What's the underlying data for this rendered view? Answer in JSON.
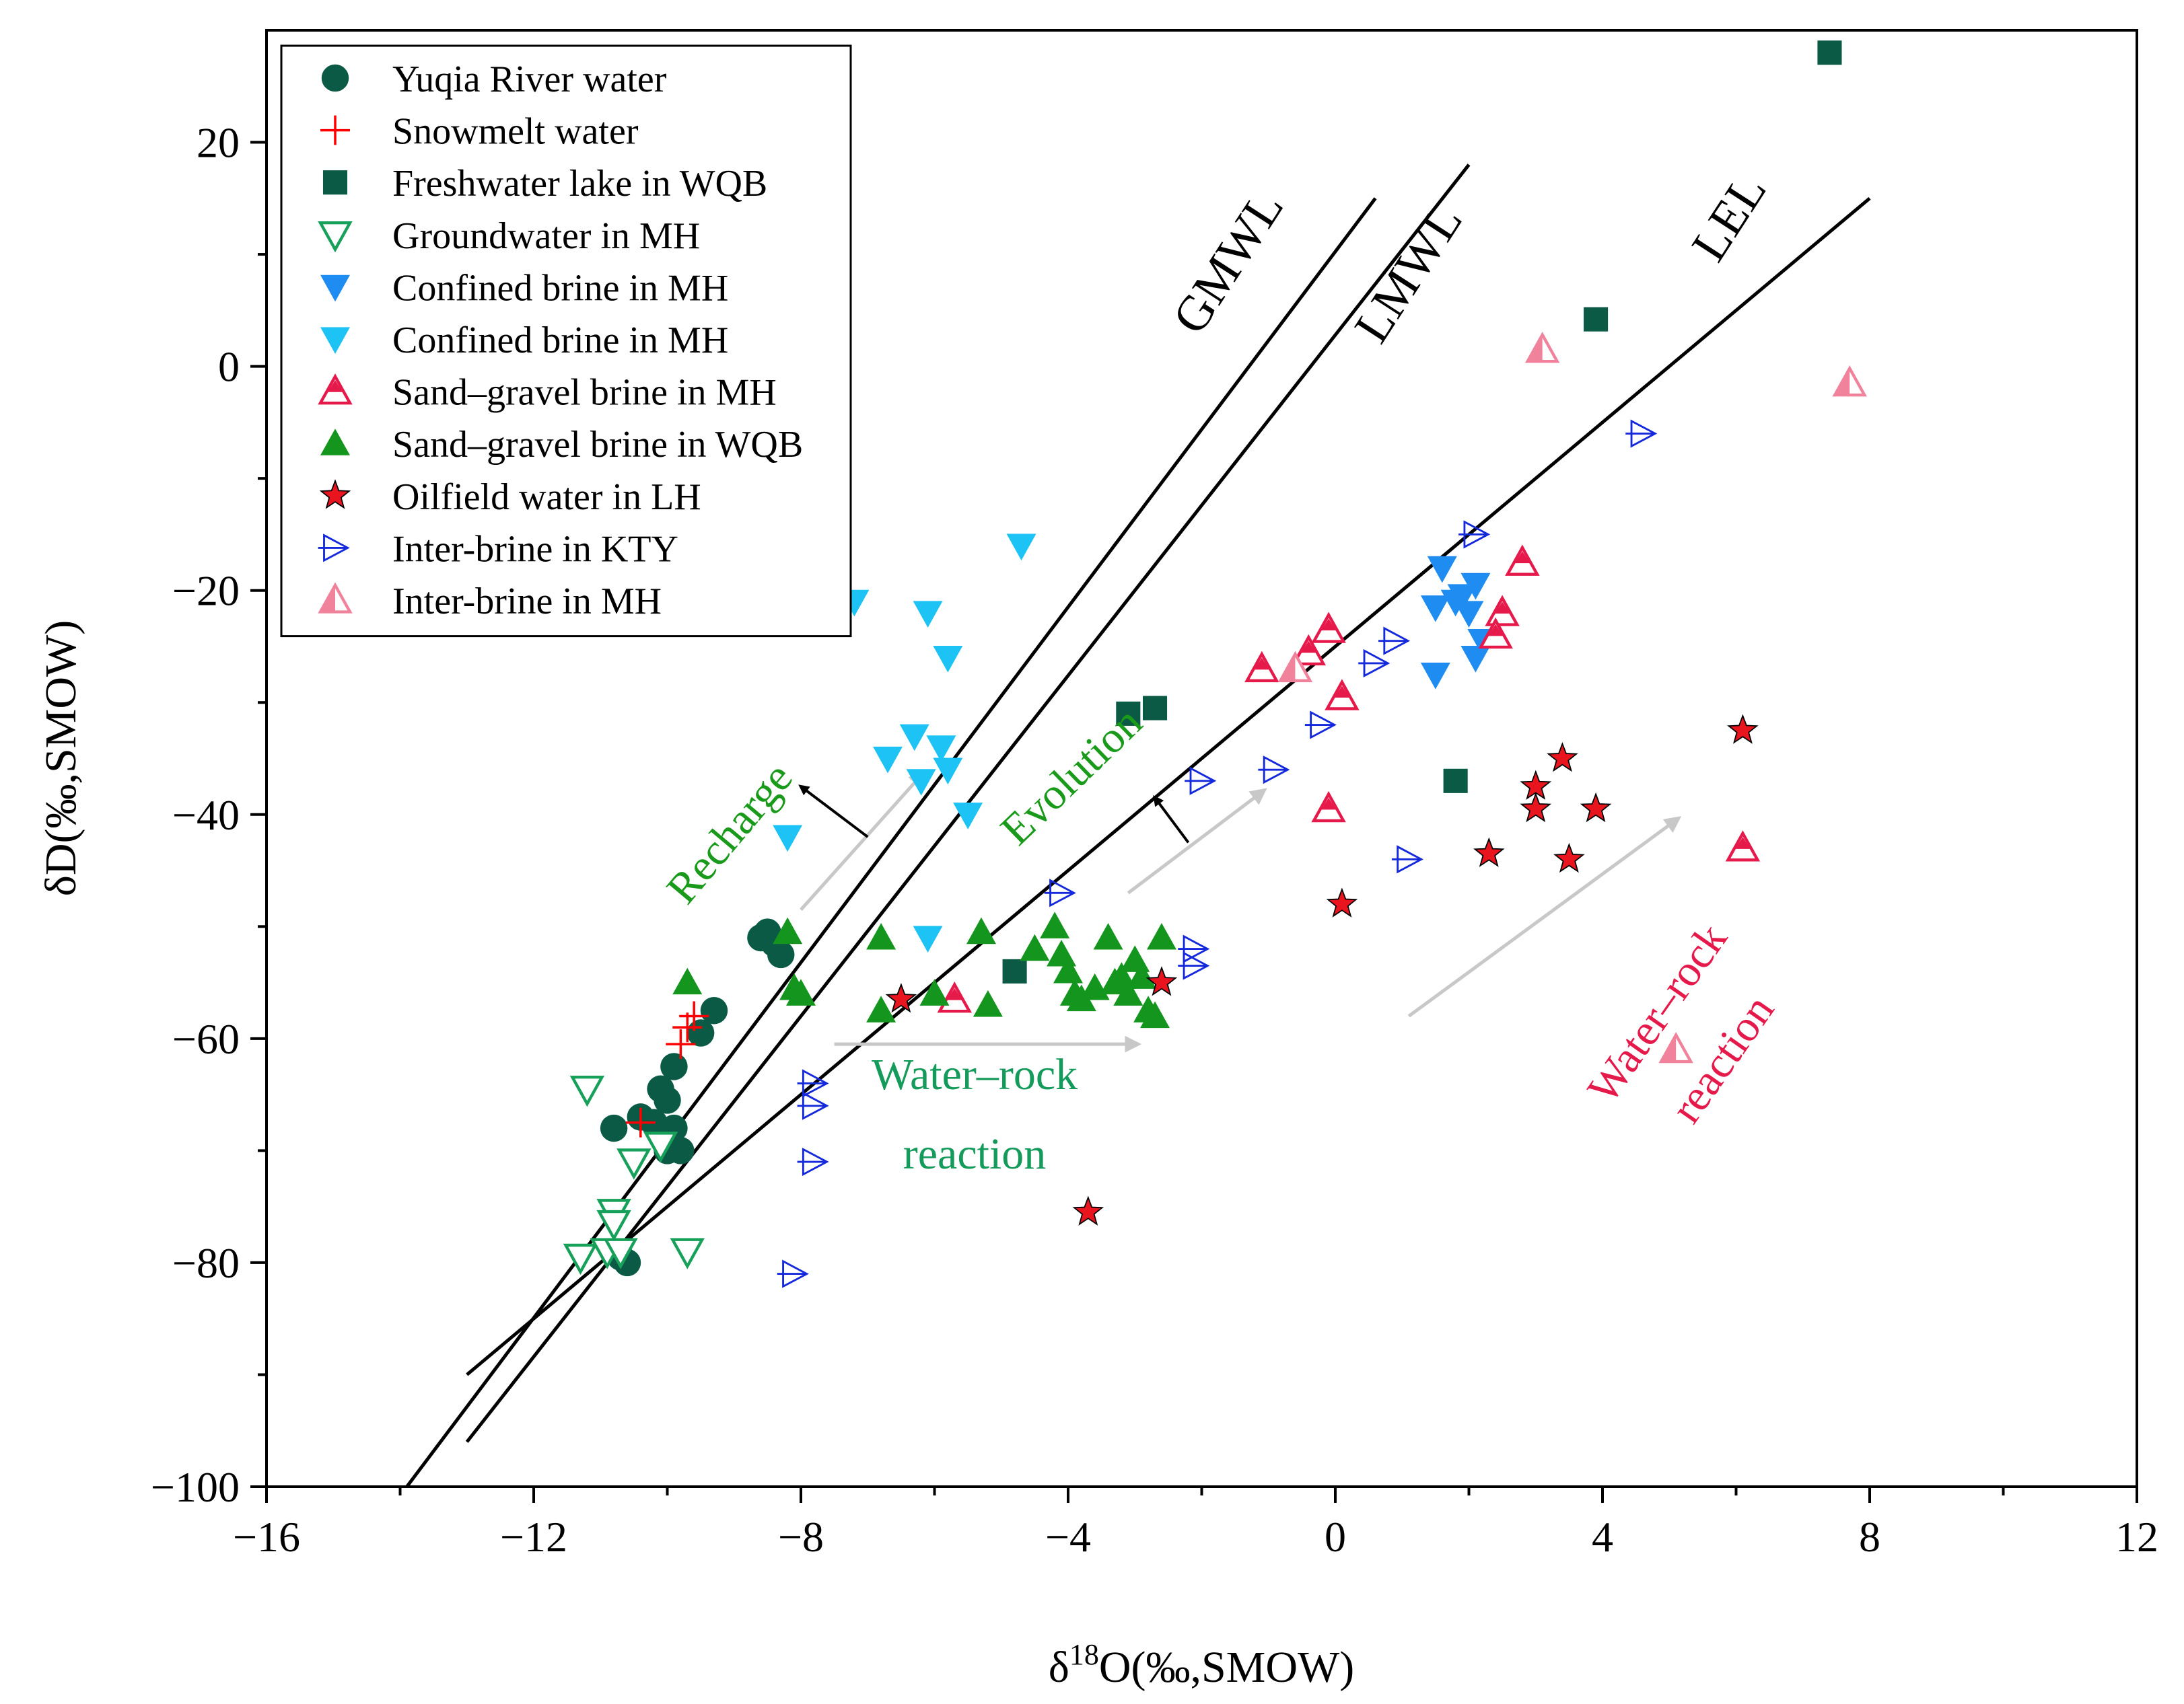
{
  "chart_data": {
    "type": "scatter",
    "xlabel": "δ18O(‰,SMOW)",
    "xlabel_parts": {
      "main": "δ",
      "sup": "18",
      "rest": "O(‰,SMOW)"
    },
    "ylabel": "δD(‰,SMOW)",
    "xlim": [
      -16,
      12
    ],
    "ylim": [
      -100,
      30
    ],
    "xticks": [
      -16,
      -12,
      -8,
      -4,
      0,
      4,
      8,
      12
    ],
    "xtick_labels": [
      "−16",
      "−12",
      "−8",
      "−4",
      "0",
      "4",
      "8",
      "12"
    ],
    "yticks": [
      -100,
      -80,
      -60,
      -40,
      -20,
      0,
      20
    ],
    "ytick_labels": [
      "−100",
      "−80",
      "−60",
      "−40",
      "−20",
      "0",
      "20"
    ],
    "grid": false,
    "legend_position": "top-left",
    "lines": [
      {
        "name": "GMWL",
        "label": "GMWL",
        "x": [
          -13.9,
          0.6
        ],
        "y": [
          -100,
          15
        ]
      },
      {
        "name": "LMWL",
        "label": "LMWL",
        "x": [
          -13.0,
          2.0
        ],
        "y": [
          -96,
          18
        ]
      },
      {
        "name": "LEL",
        "label": "LEL",
        "x": [
          -13.0,
          8.0
        ],
        "y": [
          -90,
          15
        ]
      }
    ],
    "line_labels": [
      {
        "text": "GMWL",
        "x": -1.4,
        "y": 8.5
      },
      {
        "text": "LMWL",
        "x": 1.3,
        "y": 7.5
      },
      {
        "text": "LEL",
        "x": 6.1,
        "y": 12.5
      }
    ],
    "annotations": [
      {
        "name": "recharge",
        "lines": [
          "Recharge"
        ],
        "x": -8.9,
        "y": -42.5,
        "rotate": -50,
        "color": "#1a9a1a"
      },
      {
        "name": "evolution",
        "lines": [
          "Evolution"
        ],
        "x": -3.8,
        "y": -37.5,
        "rotate": -44,
        "color": "#1a9a1a"
      },
      {
        "name": "water-rock-green",
        "lines": [
          "Water–rock",
          "reaction"
        ],
        "x": -5.4,
        "y": -64.5,
        "rotate": 0,
        "color": "#149a5a"
      },
      {
        "name": "water-rock-red",
        "lines": [
          "Water–rock",
          "reaction"
        ],
        "x": 5.0,
        "y": -58.5,
        "rotate": -55,
        "color": "#e6194b"
      }
    ],
    "arrows": [
      {
        "name": "gray-arrow-recharge",
        "x1": -8.0,
        "y1": -48.5,
        "x2": -6.2,
        "y2": -36.5,
        "color": "#c8c8c8"
      },
      {
        "name": "gray-arrow-evolution",
        "x1": -3.1,
        "y1": -47.0,
        "x2": -1.1,
        "y2": -38.0,
        "color": "#c8c8c8"
      },
      {
        "name": "gray-arrow-water-rock-green",
        "x1": -7.5,
        "y1": -60.5,
        "x2": -3.0,
        "y2": -60.5,
        "color": "#c8c8c8"
      },
      {
        "name": "gray-arrow-water-rock-red",
        "x1": 1.1,
        "y1": -58.0,
        "x2": 5.1,
        "y2": -40.5,
        "color": "#c8c8c8"
      },
      {
        "name": "black-arrow-recharge",
        "x1": -7.0,
        "y1": -42.0,
        "x2": -8.0,
        "y2": -37.5,
        "color": "#000000"
      },
      {
        "name": "black-arrow-evolution",
        "x1": -2.2,
        "y1": -42.5,
        "x2": -2.7,
        "y2": -38.5,
        "color": "#000000"
      }
    ],
    "series": [
      {
        "name": "Yuqia River water",
        "marker": "circle",
        "color": "#0b5a45",
        "x": [
          -10.6,
          -10.8,
          -10.2,
          -10.0,
          -9.8,
          -9.9,
          -9.5,
          -9.3,
          -10.1,
          -10.0,
          -9.9,
          -8.6,
          -8.5,
          -8.4,
          -8.3,
          -10.4,
          -10.7
        ],
        "y": [
          -80.0,
          -68.0,
          -67.5,
          -70.0,
          -70.0,
          -62.5,
          -59.5,
          -57.5,
          -64.5,
          -65.5,
          -68.0,
          -51.0,
          -50.5,
          -51.5,
          -52.5,
          -67.0,
          -79.5
        ]
      },
      {
        "name": "Snowmelt water",
        "marker": "plus",
        "color": "#ff0000",
        "x": [
          -9.6,
          -9.7,
          -9.8,
          -10.4
        ],
        "y": [
          -58.0,
          -59.0,
          -60.5,
          -67.5
        ]
      },
      {
        "name": "Freshwater lake in WQB",
        "marker": "square",
        "color": "#0b5a45",
        "x": [
          7.4,
          3.9,
          -3.1,
          -2.7,
          -4.8,
          1.8
        ],
        "y": [
          28.0,
          4.2,
          -31.0,
          -30.5,
          -54.0,
          -37.0
        ]
      },
      {
        "name": "Groundwater in MH",
        "marker": "tri-down-open",
        "color": "#17a05a",
        "x": [
          -11.2,
          -10.8,
          -10.8,
          -11.3,
          -10.9,
          -10.7,
          -10.5,
          -10.1,
          -9.7
        ],
        "y": [
          -64.5,
          -75.5,
          -76.5,
          -79.5,
          -79.0,
          -79.0,
          -71.0,
          -69.5,
          -79.0
        ]
      },
      {
        "name": "Confined brine in MH",
        "marker": "tri-down",
        "color": "#1e8cf0",
        "x": [
          1.6,
          2.1,
          1.5,
          1.8,
          2.0,
          1.9,
          2.2,
          1.5,
          2.1
        ],
        "y": [
          -18.0,
          -19.5,
          -21.5,
          -21.0,
          -22.0,
          -20.5,
          -24.5,
          -27.5,
          -26.0
        ]
      },
      {
        "name": "Confined brine in MH",
        "marker": "tri-down",
        "color": "#1ec3f5",
        "x": [
          -7.2,
          -4.7,
          -6.1,
          -5.8,
          -6.3,
          -6.7,
          -5.9,
          -6.2,
          -5.8,
          -8.2,
          -5.5,
          -6.1
        ],
        "y": [
          -21.0,
          -16.0,
          -22.0,
          -26.0,
          -33.0,
          -35.0,
          -34.0,
          -37.0,
          -36.0,
          -42.0,
          -40.0,
          -51.0
        ]
      },
      {
        "name": "Sand–gravel brine in MH",
        "marker": "tri-up-open",
        "color": "#e6194b",
        "x": [
          2.8,
          2.5,
          2.4,
          -0.1,
          -0.4,
          -1.1,
          0.1,
          -0.1,
          6.1,
          -5.7
        ],
        "y": [
          -17.5,
          -22.0,
          -24.0,
          -23.5,
          -25.5,
          -27.0,
          -29.5,
          -39.5,
          -43.0,
          -56.5
        ]
      },
      {
        "name": "Sand–gravel brine in WQB",
        "marker": "tri-up",
        "color": "#14961e",
        "x": [
          -9.7,
          -8.2,
          -8.1,
          -8.0,
          -6.8,
          -6.8,
          -6.0,
          -5.3,
          -5.2,
          -4.5,
          -4.2,
          -4.0,
          -3.8,
          -3.6,
          -3.4,
          -3.2,
          -3.0,
          -2.8,
          -2.7,
          -2.6,
          -4.1,
          -3.9,
          -3.3,
          -3.1,
          -2.9
        ],
        "y": [
          -55.0,
          -50.5,
          -55.5,
          -56.0,
          -51.0,
          -57.5,
          -56.0,
          -50.5,
          -57.0,
          -52.0,
          -50.0,
          -54.0,
          -56.5,
          -55.5,
          -51.0,
          -54.5,
          -53.0,
          -57.5,
          -58.0,
          -51.0,
          -52.5,
          -56.0,
          -55.0,
          -56.0,
          -54.5
        ]
      },
      {
        "name": "Oilfield water in LH",
        "marker": "star",
        "color": "#e8141e",
        "x": [
          6.1,
          3.4,
          3.0,
          3.0,
          3.9,
          2.3,
          3.5,
          0.1,
          -6.5,
          -2.6,
          -3.7
        ],
        "y": [
          -32.5,
          -35.0,
          -37.5,
          -39.5,
          -39.5,
          -43.5,
          -44.0,
          -48.0,
          -56.5,
          -55.0,
          -75.5
        ]
      },
      {
        "name": "Inter-brine in KTY",
        "marker": "tri-right-open",
        "color": "#1428dc",
        "x": [
          4.6,
          2.1,
          0.9,
          0.6,
          -0.2,
          -2.0,
          -0.9,
          -4.1,
          -2.1,
          -2.1,
          1.1,
          -7.8,
          -7.8,
          -7.8,
          -8.1
        ],
        "y": [
          -6.0,
          -15.0,
          -24.5,
          -26.5,
          -32.0,
          -37.0,
          -36.0,
          -47.0,
          -52.0,
          -53.5,
          -44.0,
          -64.0,
          -66.0,
          -71.0,
          -81.0
        ]
      },
      {
        "name": "Inter-brine in MH",
        "marker": "tri-up-half",
        "color": "#f0829b",
        "x": [
          3.1,
          7.7,
          -0.6,
          5.1
        ],
        "y": [
          1.5,
          -1.5,
          -27.0,
          -61.0
        ]
      }
    ]
  }
}
